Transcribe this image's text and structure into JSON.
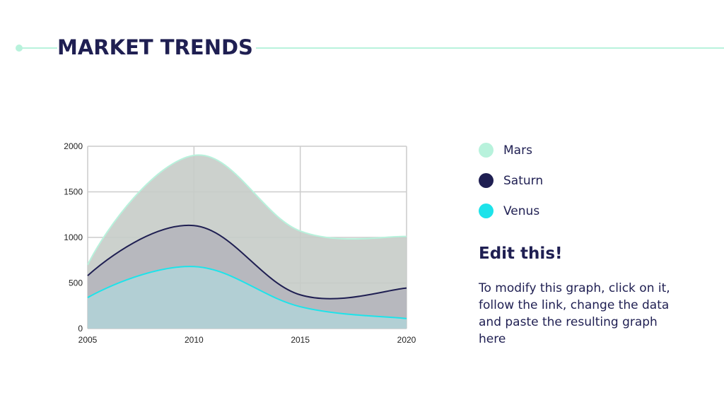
{
  "page": {
    "title": "MARKET TRENDS"
  },
  "sidebar": {
    "edit_title": "Edit this!",
    "edit_body": "To modify this graph, click on it, follow the link, change the data and paste the resulting graph here"
  },
  "chart_data": {
    "type": "area",
    "x": [
      2005,
      2010,
      2015,
      2020
    ],
    "x_ticks": [
      "2005",
      "2010",
      "2015",
      "2020"
    ],
    "y_ticks": [
      "0",
      "500",
      "1000",
      "1500",
      "2000"
    ],
    "ylim": [
      0,
      2000
    ],
    "xlim": [
      2005,
      2020
    ],
    "grid": true,
    "legend_position": "right",
    "series": [
      {
        "name": "Mars",
        "values": [
          700,
          1900,
          1070,
          1010
        ],
        "color": "#b8f2dc",
        "fill": "#c7ccc8"
      },
      {
        "name": "Saturn",
        "values": [
          580,
          1130,
          370,
          445
        ],
        "color": "#1f1f52",
        "fill": "#b5b5bd"
      },
      {
        "name": "Venus",
        "values": [
          340,
          680,
          240,
          110
        ],
        "color": "#1de3ea",
        "fill": "#b1d2d6"
      }
    ]
  }
}
